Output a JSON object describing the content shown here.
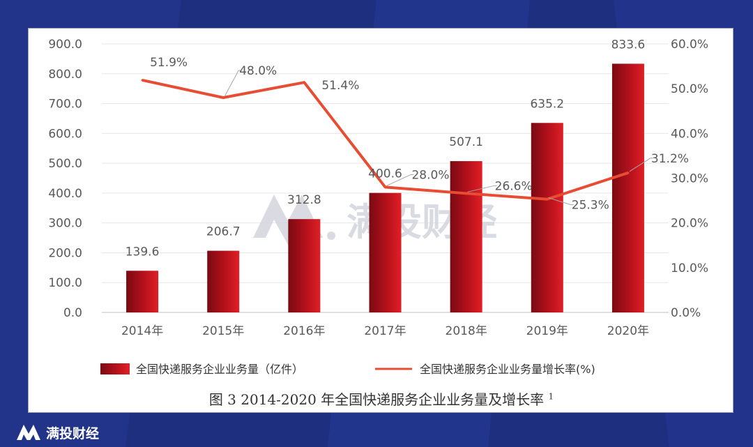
{
  "watermark": {
    "text": "满投财经"
  },
  "brand": {
    "text": "满投财经"
  },
  "caption": {
    "text": "图 3 2014-2020 年全国快递服务企业业务量及增长率",
    "sup": "1"
  },
  "colors": {
    "bar_dark": "#7a0a12",
    "bar_light": "#e01f26",
    "line": "#e84c32",
    "background": "#1f2f80"
  },
  "chart_data": {
    "type": "bar",
    "categories": [
      "2014年",
      "2015年",
      "2016年",
      "2017年",
      "2018年",
      "2019年",
      "2020年"
    ],
    "series": [
      {
        "name": "全国快递服务企业业务量（亿件）",
        "type": "bar",
        "axis": "left",
        "values": [
          139.6,
          206.7,
          312.8,
          400.6,
          507.1,
          635.2,
          833.6
        ],
        "labels": [
          "139.6",
          "206.7",
          "312.8",
          "400.6",
          "507.1",
          "635.2",
          "833.6"
        ]
      },
      {
        "name": "全国快递服务企业业务量增长率(%)",
        "type": "line",
        "axis": "right",
        "values": [
          51.9,
          48.0,
          51.4,
          28.0,
          26.6,
          25.3,
          31.2
        ],
        "labels": [
          "51.9%",
          "48.0%",
          "51.4%",
          "28.0%",
          "26.6%",
          "25.3%",
          "31.2%"
        ]
      }
    ],
    "y_left": {
      "ylim": [
        0,
        900
      ],
      "ticks": [
        "0.0",
        "100.0",
        "200.0",
        "300.0",
        "400.0",
        "500.0",
        "600.0",
        "700.0",
        "800.0",
        "900.0"
      ]
    },
    "y_right": {
      "ylim": [
        0,
        60
      ],
      "ticks": [
        "0.0%",
        "10.0%",
        "20.0%",
        "30.0%",
        "40.0%",
        "50.0%",
        "60.0%"
      ]
    },
    "grid": true,
    "legend_position": "bottom"
  }
}
